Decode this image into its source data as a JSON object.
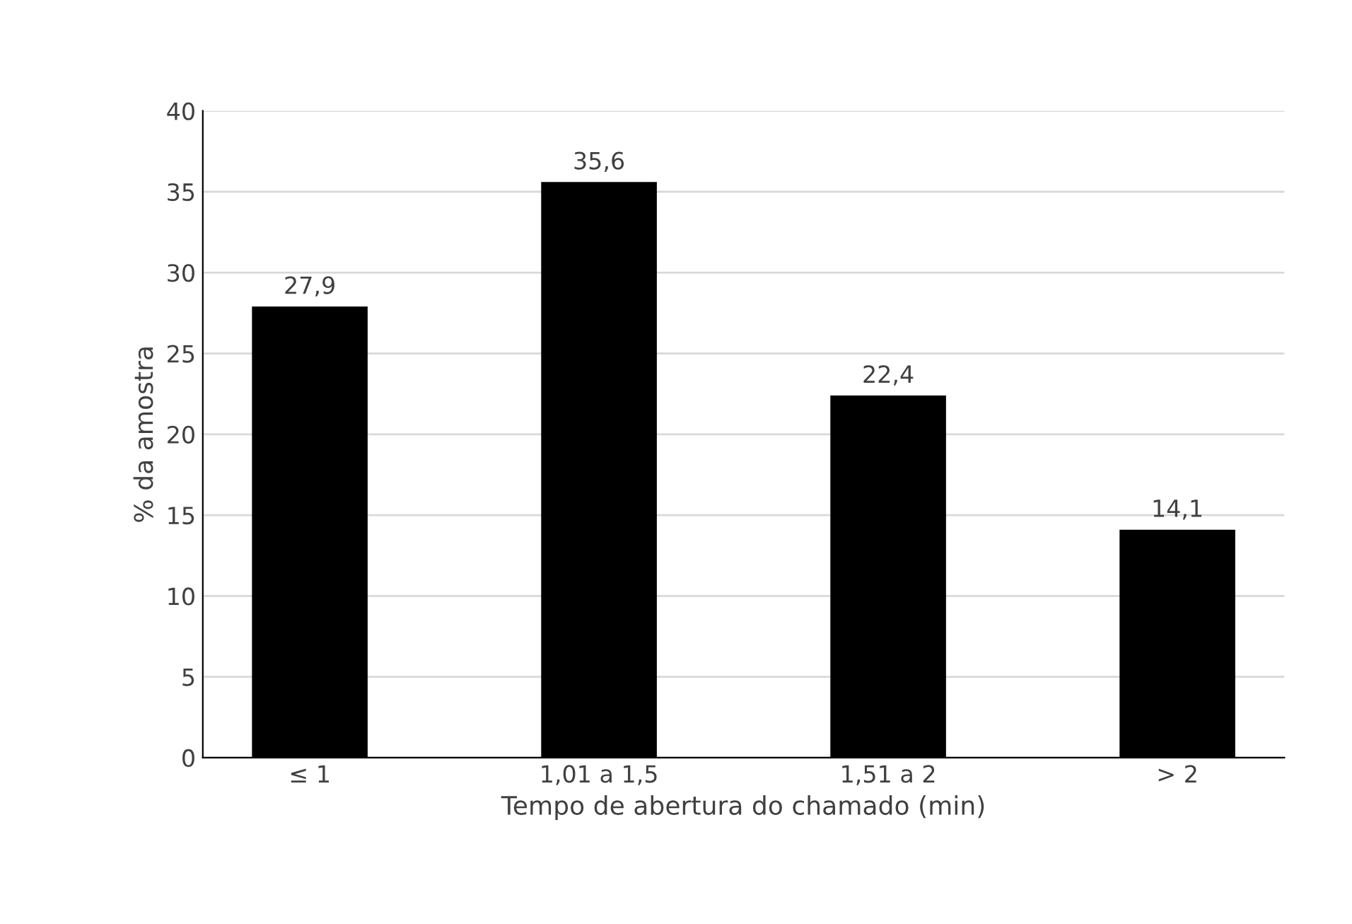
{
  "chart_data": {
    "type": "bar",
    "xlabel": "Tempo de abertura do chamado (min)",
    "ylabel": "% da amostra",
    "categories": [
      "≤ 1",
      "1,01 a 1,5",
      "1,51 a 2",
      "> 2"
    ],
    "values": [
      27.9,
      35.6,
      22.4,
      14.1
    ],
    "value_labels": [
      "27,9",
      "35,6",
      "22,4",
      "14,1"
    ],
    "color": "#000000",
    "ylim": [
      0,
      40
    ],
    "yticks": [
      0,
      5,
      10,
      15,
      20,
      25,
      30,
      35,
      40
    ],
    "grid": "y"
  }
}
